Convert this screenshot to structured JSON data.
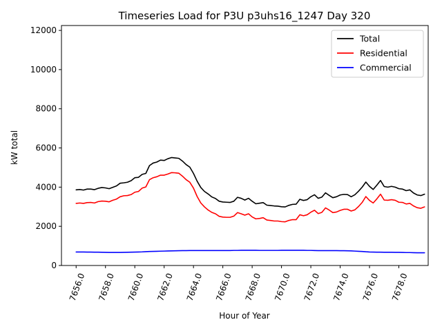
{
  "chart_data": {
    "type": "line",
    "title": "Timeseries Load for P3U p3uhs16_1247  Day 320",
    "xlabel": "Hour of Year",
    "ylabel": "kW total",
    "xlim": [
      7655.0,
      7680.0
    ],
    "ylim": [
      0,
      12250
    ],
    "x_start": 7656.0,
    "x_step": 0.25,
    "xticks": [
      7656.0,
      7658.0,
      7660.0,
      7662.0,
      7664.0,
      7666.0,
      7668.0,
      7670.0,
      7672.0,
      7674.0,
      7676.0,
      7678.0
    ],
    "xtick_labels": [
      "7656.0",
      "7658.0",
      "7660.0",
      "7662.0",
      "7664.0",
      "7666.0",
      "7668.0",
      "7670.0",
      "7672.0",
      "7674.0",
      "7676.0",
      "7678.0"
    ],
    "yticks": [
      0,
      2000,
      4000,
      6000,
      8000,
      10000,
      12000
    ],
    "ytick_labels": [
      "0",
      "2000",
      "4000",
      "6000",
      "8000",
      "10000",
      "12000"
    ],
    "grid": false,
    "legend_position": "top-right",
    "series": [
      {
        "name": "Total",
        "color": "#000000",
        "values": [
          3860,
          3880,
          3850,
          3900,
          3900,
          3870,
          3940,
          3980,
          3960,
          3920,
          3990,
          4060,
          4200,
          4220,
          4250,
          4330,
          4480,
          4500,
          4650,
          4700,
          5100,
          5230,
          5280,
          5380,
          5360,
          5450,
          5510,
          5490,
          5470,
          5330,
          5150,
          5020,
          4700,
          4300,
          3980,
          3780,
          3650,
          3500,
          3420,
          3280,
          3240,
          3230,
          3220,
          3280,
          3480,
          3430,
          3340,
          3430,
          3280,
          3150,
          3180,
          3210,
          3080,
          3060,
          3040,
          3030,
          3000,
          2990,
          3070,
          3120,
          3130,
          3380,
          3320,
          3360,
          3510,
          3610,
          3430,
          3490,
          3710,
          3580,
          3460,
          3510,
          3600,
          3630,
          3620,
          3510,
          3610,
          3790,
          4000,
          4260,
          4040,
          3880,
          4100,
          4340,
          4030,
          4000,
          4040,
          4000,
          3920,
          3900,
          3820,
          3860,
          3700,
          3600,
          3570,
          3640
        ]
      },
      {
        "name": "Residential",
        "color": "#ff0000",
        "values": [
          3170,
          3190,
          3170,
          3210,
          3220,
          3190,
          3260,
          3290,
          3280,
          3250,
          3330,
          3390,
          3510,
          3560,
          3570,
          3620,
          3740,
          3780,
          3950,
          4010,
          4380,
          4480,
          4530,
          4610,
          4610,
          4670,
          4740,
          4730,
          4710,
          4560,
          4380,
          4250,
          3950,
          3520,
          3190,
          2990,
          2830,
          2710,
          2640,
          2510,
          2470,
          2460,
          2460,
          2520,
          2700,
          2640,
          2570,
          2640,
          2480,
          2380,
          2400,
          2440,
          2320,
          2300,
          2270,
          2270,
          2240,
          2230,
          2300,
          2340,
          2340,
          2590,
          2540,
          2590,
          2720,
          2820,
          2650,
          2710,
          2940,
          2830,
          2700,
          2730,
          2810,
          2870,
          2870,
          2780,
          2840,
          3010,
          3220,
          3520,
          3320,
          3190,
          3400,
          3640,
          3340,
          3330,
          3360,
          3330,
          3230,
          3220,
          3140,
          3170,
          3040,
          2950,
          2920,
          2990
        ]
      },
      {
        "name": "Commercial",
        "color": "#0000ff",
        "values": [
          690,
          690,
          690,
          685,
          685,
          680,
          680,
          675,
          670,
          665,
          665,
          665,
          665,
          670,
          675,
          680,
          685,
          690,
          695,
          705,
          715,
          720,
          725,
          730,
          735,
          740,
          745,
          750,
          755,
          760,
          760,
          765,
          765,
          765,
          765,
          765,
          765,
          765,
          765,
          765,
          765,
          765,
          765,
          770,
          770,
          775,
          775,
          775,
          775,
          775,
          770,
          770,
          770,
          770,
          770,
          770,
          775,
          775,
          775,
          775,
          775,
          775,
          775,
          770,
          770,
          765,
          760,
          760,
          760,
          760,
          760,
          760,
          755,
          755,
          750,
          745,
          735,
          725,
          715,
          700,
          690,
          685,
          680,
          680,
          675,
          675,
          675,
          670,
          670,
          665,
          660,
          660,
          655,
          650,
          650,
          650
        ]
      }
    ]
  }
}
